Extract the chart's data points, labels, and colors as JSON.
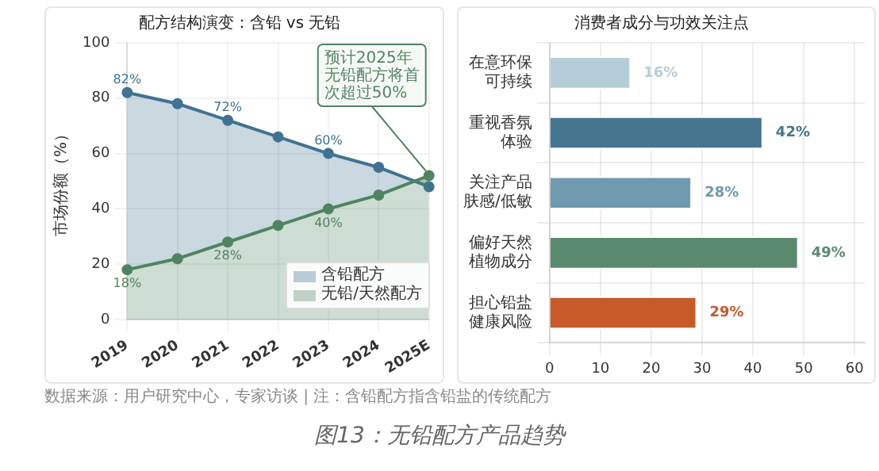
{
  "chart_data": [
    {
      "type": "area",
      "title": "配方结构演变：含铅 vs 无铅",
      "ylabel": "市场份额（%）",
      "categories": [
        "2019",
        "2020",
        "2021",
        "2022",
        "2023",
        "2024",
        "2025E"
      ],
      "series": [
        {
          "name": "无铅/天然配方",
          "color": "#4f8460",
          "values": [
            18,
            22,
            28,
            34,
            40,
            45,
            52
          ],
          "value_labels": [
            "18%",
            null,
            "28%",
            null,
            "40%",
            null,
            null
          ]
        },
        {
          "name": "含铅配方",
          "color": "#3f7391",
          "values": [
            82,
            78,
            72,
            66,
            60,
            55,
            48
          ],
          "value_labels": [
            "82%",
            null,
            "72%",
            null,
            "60%",
            null,
            null
          ]
        }
      ],
      "ylim": [
        0,
        100
      ],
      "yticks": [
        0,
        20,
        40,
        60,
        80,
        100
      ],
      "grid": true,
      "legend": "right",
      "marker": "circle",
      "annotations": [
        {
          "text": "预计2025年无铅配方将首次超过50%",
          "x": "2025E",
          "y": 52
        },
        "数据来源：用户研究中心，专家访谈 | 注：含铅配方指含铅盐的传统配方",
        "图13：无铅配方产品趋势"
      ]
    },
    {
      "type": "bar",
      "orientation": "horizontal",
      "title": "消费者成分与功效关注点",
      "categories": [
        "在意环保可持续",
        "重视香氛体验",
        "关注产品肤感/低敏",
        "偏好天然植物成分",
        "担心铅盐健康风险"
      ],
      "values": [
        16,
        42,
        28,
        49,
        29
      ],
      "colors": [
        "#b5cdd6",
        "#46758f",
        "#6f9ab0",
        "#5a8a6e",
        "#c65a28"
      ],
      "value_labels": [
        "16%",
        "42%",
        "28%",
        "49%",
        "29%"
      ],
      "xlim": [
        0,
        62
      ],
      "xticks": [
        0,
        10,
        20,
        30,
        40,
        50,
        60
      ],
      "grid": true
    }
  ]
}
